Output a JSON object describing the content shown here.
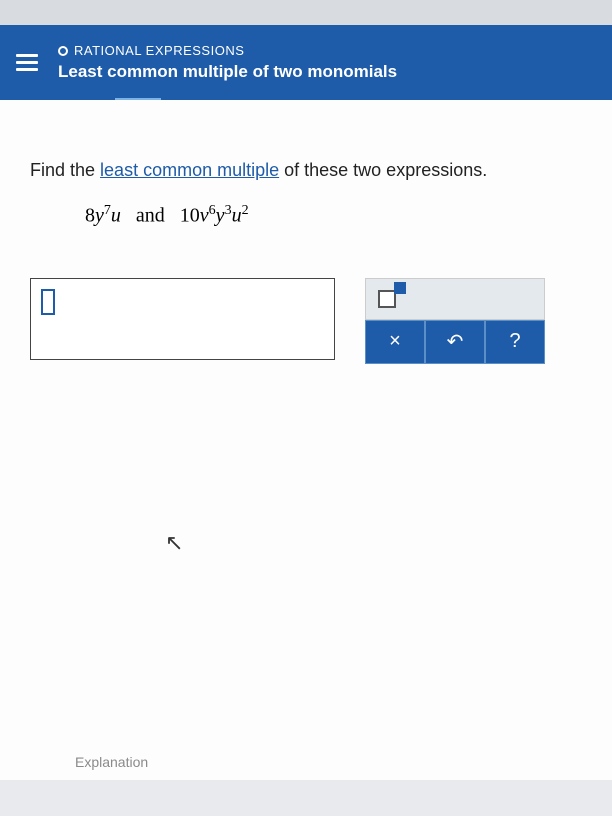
{
  "header": {
    "breadcrumb_label": "RATIONAL EXPRESSIONS",
    "topic_title": "Least common multiple of two monomials"
  },
  "question": {
    "prefix": "Find the ",
    "link_text": "least common multiple",
    "suffix": " of these two expressions."
  },
  "expressions": {
    "expr1_coef": "8",
    "expr1_var1": "y",
    "expr1_exp1": "7",
    "expr1_var2": "u",
    "connector": "and",
    "expr2_coef": "10",
    "expr2_var1": "v",
    "expr2_exp1": "6",
    "expr2_var2": "y",
    "expr2_exp2": "3",
    "expr2_var3": "u",
    "expr2_exp3": "2"
  },
  "tools": {
    "clear_symbol": "×",
    "undo_symbol": "↶",
    "help_symbol": "?"
  },
  "footer": {
    "explanation_label": "Explanation"
  },
  "colors": {
    "header_bg": "#1e5ba8",
    "content_bg": "#fdfdfd",
    "body_bg": "#e8eaed",
    "link_color": "#1e5ba8"
  }
}
